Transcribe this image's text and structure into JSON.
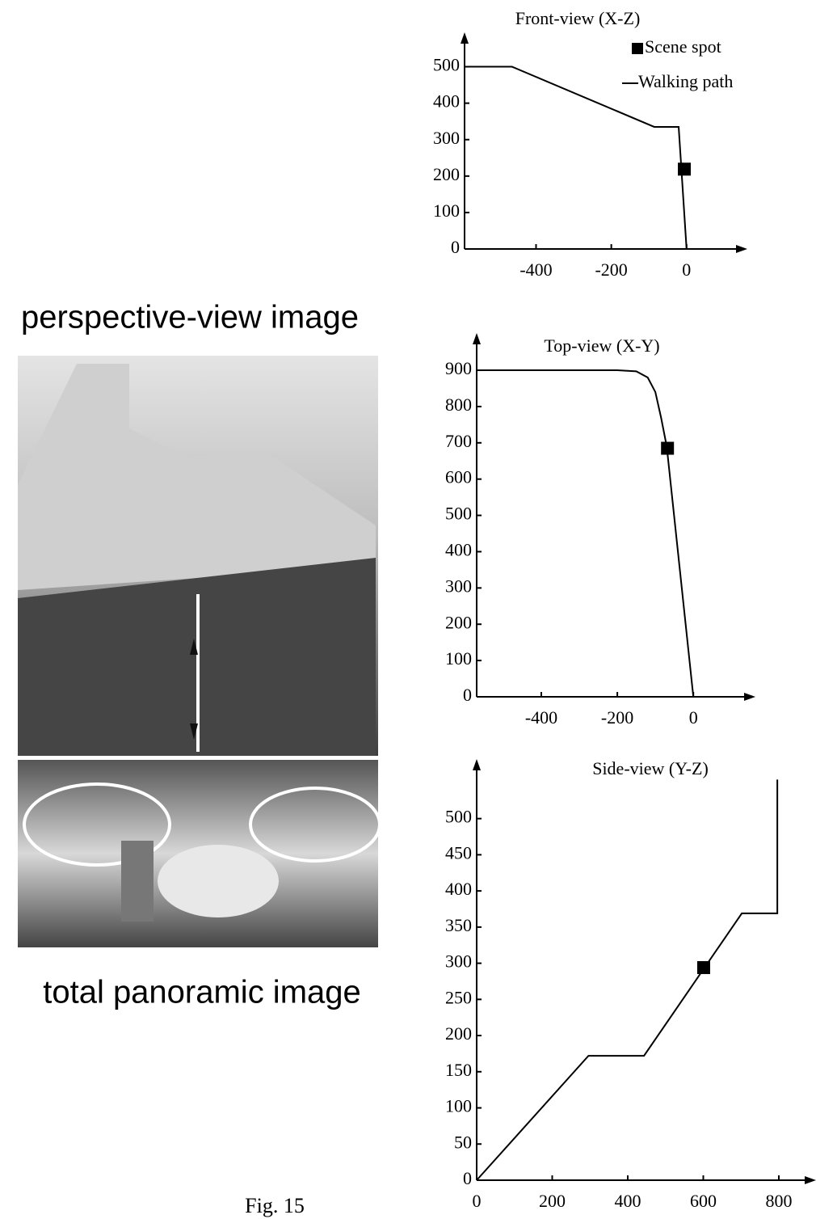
{
  "labels": {
    "perspective": "perspective-view image",
    "panoramic": "total panoramic image",
    "figure": "Fig. 15"
  },
  "chart_data": [
    {
      "type": "line",
      "title": "Front-view (X-Z)",
      "xlim": [
        -590,
        140
      ],
      "xticks": [
        -400,
        -200,
        0
      ],
      "ylim": [
        0,
        550
      ],
      "yticks": [
        0,
        100,
        200,
        300,
        400,
        500
      ],
      "legend": "top-right",
      "series": [
        {
          "name": "Scene spot",
          "type": "scatter",
          "marker": "square",
          "color": "#000000",
          "x": [
            -6
          ],
          "values": [
            219
          ]
        },
        {
          "name": "Walking path",
          "type": "line",
          "color": "#000000",
          "x": [
            -590,
            -464,
            -86,
            -21,
            0
          ],
          "values": [
            500,
            500,
            335,
            335,
            0
          ]
        }
      ]
    },
    {
      "type": "line",
      "title": "Top-view (X-Y)",
      "xlim": [
        -570,
        142
      ],
      "xticks": [
        -400,
        -200,
        0
      ],
      "ylim": [
        0,
        958
      ],
      "yticks": [
        0,
        100,
        200,
        300,
        400,
        500,
        600,
        700,
        800,
        900
      ],
      "series": [
        {
          "type": "scatter",
          "marker": "square",
          "color": "#000000",
          "x": [
            -68
          ],
          "values": [
            685
          ]
        },
        {
          "type": "line",
          "color": "#000000",
          "x": [
            -570,
            -200,
            -150,
            -120,
            -100,
            -85,
            -70,
            0
          ],
          "values": [
            900,
            900,
            897,
            880,
            840,
            770,
            690,
            0
          ]
        }
      ]
    },
    {
      "type": "line",
      "title": "Side-view (Y-Z)",
      "xlim": [
        0,
        877
      ],
      "xticks": [
        0,
        200,
        400,
        600,
        800
      ],
      "ylim": [
        0,
        560
      ],
      "yticks": [
        0,
        50,
        100,
        150,
        200,
        250,
        300,
        350,
        400,
        450,
        500
      ],
      "series": [
        {
          "type": "scatter",
          "marker": "square",
          "color": "#000000",
          "x": [
            601
          ],
          "values": [
            294
          ]
        },
        {
          "type": "line",
          "color": "#000000",
          "x": [
            0,
            296,
            443,
            702,
            796,
            796
          ],
          "values": [
            0,
            172,
            172,
            369,
            369,
            554
          ]
        }
      ]
    }
  ]
}
